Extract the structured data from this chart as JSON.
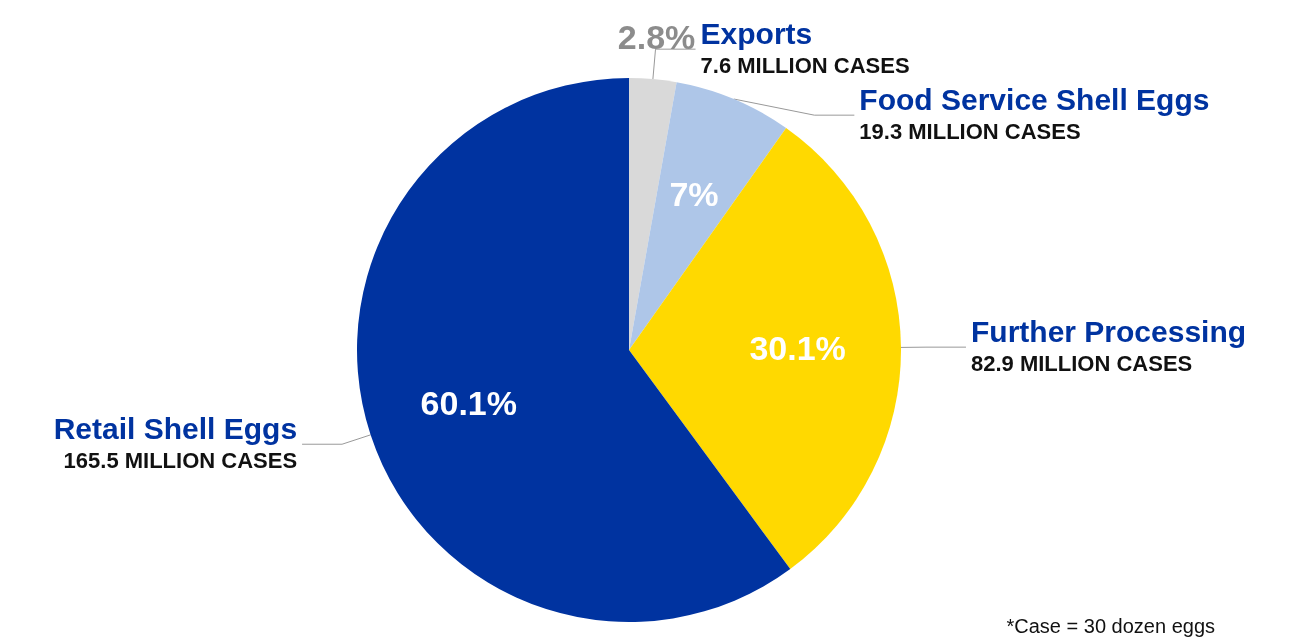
{
  "chart_data": {
    "type": "pie",
    "categories": [
      "Exports",
      "Food Service Shell Eggs",
      "Further Processing",
      "Retail Shell Eggs"
    ],
    "values": [
      2.8,
      7,
      30.1,
      60.1
    ],
    "colors": [
      "#d9d9d9",
      "#aec6e8",
      "#ffd900",
      "#0033a0"
    ],
    "value_labels": [
      "2.8%",
      "7%",
      "30.1%",
      "60.1%"
    ],
    "annotations": [
      "7.6 MILLION CASES",
      "19.3 MILLION CASES",
      "82.9 MILLION CASES",
      "165.5 MILLION CASES",
      "*Case = 30 dozen eggs"
    ]
  }
}
